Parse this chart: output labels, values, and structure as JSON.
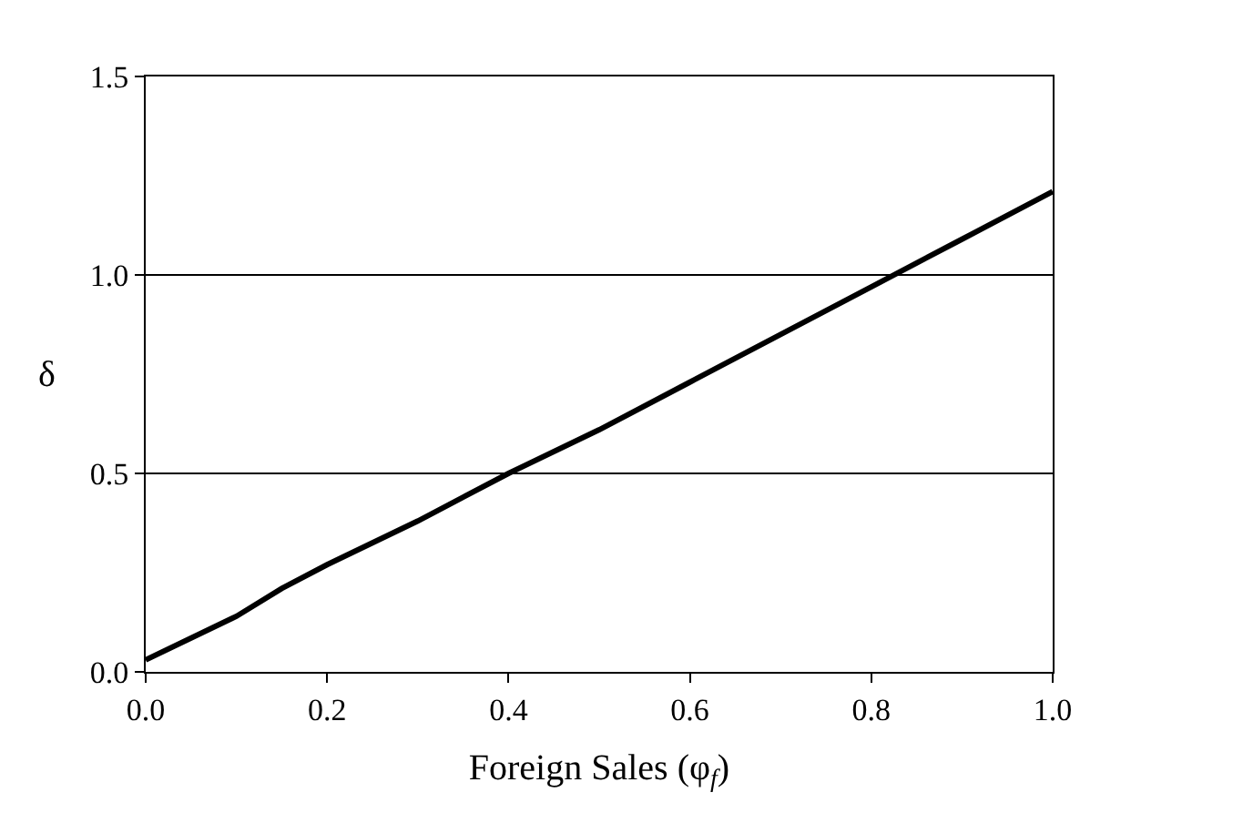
{
  "chart_data": {
    "type": "line",
    "xlabel": "Foreign Sales (φ$_{f}$)",
    "ylabel": "δ",
    "x": [
      0,
      0.1,
      0.15,
      0.2,
      0.3,
      0.4,
      0.5,
      0.6,
      0.7,
      0.8,
      0.9,
      1.0
    ],
    "series": [
      {
        "color": "#000000",
        "values": [
          0.03,
          0.14,
          0.21,
          0.27,
          0.38,
          0.5,
          0.61,
          0.73,
          0.85,
          0.97,
          1.09,
          1.21
        ]
      }
    ],
    "xlim": [
      0,
      1
    ],
    "xticks": [
      {
        "value": 0,
        "label": "0.0"
      },
      0.2,
      0.4,
      0.6,
      0.8,
      {
        "value": 1,
        "label": "1.0"
      }
    ],
    "ylim": [
      0,
      1.5
    ],
    "yticks": [
      {
        "value": 0,
        "label": "0.0"
      },
      0.5,
      {
        "value": 1,
        "label": "1.0"
      },
      1.5
    ],
    "grid": "y",
    "marker": "none",
    "line_style": "solid"
  }
}
